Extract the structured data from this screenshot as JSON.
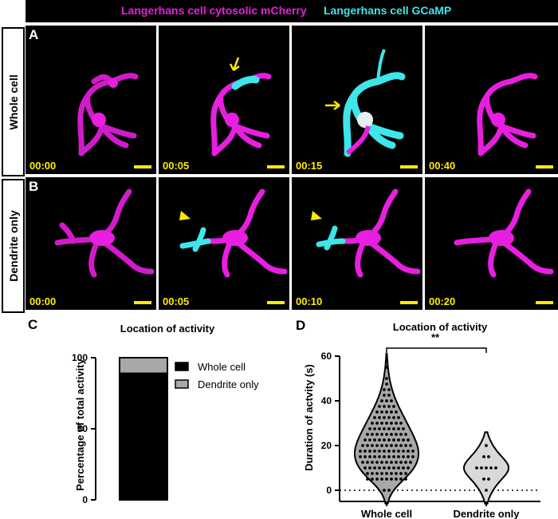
{
  "header": {
    "mcherry_label": "Langerhans cell cytosolic mCherry",
    "gcamp_label": "Langerhans cell GCaMP",
    "colors": {
      "mcherry": "#e81ee0",
      "gcamp": "#3ee6ea"
    }
  },
  "row_a": {
    "panel_letter": "A",
    "row_label": "Whole cell",
    "times": [
      "00:00",
      "00:05",
      "00:15",
      "00:40"
    ]
  },
  "row_b": {
    "panel_letter": "B",
    "row_label": "Dendrite only",
    "times": [
      "00:00",
      "00:05",
      "00:10",
      "00:20"
    ]
  },
  "panel_c": {
    "letter": "C",
    "title": "Location of activity",
    "ylabel": "Percentage of total activity",
    "yticks": [
      "0",
      "50",
      "100"
    ],
    "legend": [
      "Whole cell",
      "Dendrite only"
    ]
  },
  "panel_d": {
    "letter": "D",
    "title": "Location of activity",
    "significance": "**",
    "ylabel": "Duration of actvity  (s)",
    "yticks": [
      "0",
      "20",
      "40",
      "60"
    ],
    "categories": [
      "Whole cell",
      "Dendrite only"
    ]
  },
  "chart_data": [
    {
      "type": "bar",
      "stacked": true,
      "title": "Location of activity",
      "ylabel": "Percentage of total activity",
      "ylim": [
        0,
        100
      ],
      "categories": [
        ""
      ],
      "series": [
        {
          "name": "Whole cell",
          "values": [
            89
          ],
          "color": "#000000"
        },
        {
          "name": "Dendrite only",
          "values": [
            11
          ],
          "color": "#a8a8a8"
        }
      ],
      "legend_position": "right"
    },
    {
      "type": "scatter",
      "subtype": "violin",
      "title": "Location of activity",
      "ylabel": "Duration of actvity  (s)",
      "ylim": [
        -5,
        60
      ],
      "categories": [
        "Whole cell",
        "Dendrite only"
      ],
      "series": [
        {
          "name": "Whole cell",
          "color": "#a8a8a8",
          "values": [
            0,
            0,
            5,
            5,
            5,
            5,
            5,
            5,
            5,
            5,
            5,
            7.5,
            7.5,
            7.5,
            7.5,
            7.5,
            7.5,
            7.5,
            7.5,
            7.5,
            10,
            10,
            10,
            10,
            10,
            10,
            10,
            10,
            10,
            10,
            12.5,
            12.5,
            12.5,
            12.5,
            12.5,
            12.5,
            12.5,
            12.5,
            12.5,
            12.5,
            12.5,
            15,
            15,
            15,
            15,
            15,
            15,
            15,
            15,
            15,
            15,
            15,
            15,
            17.5,
            17.5,
            17.5,
            17.5,
            17.5,
            17.5,
            17.5,
            17.5,
            17.5,
            17.5,
            17.5,
            17.5,
            20,
            20,
            20,
            20,
            20,
            20,
            20,
            20,
            20,
            20,
            20,
            22.5,
            22.5,
            22.5,
            22.5,
            22.5,
            22.5,
            22.5,
            22.5,
            22.5,
            22.5,
            25,
            25,
            25,
            25,
            25,
            25,
            25,
            25,
            25,
            27.5,
            27.5,
            27.5,
            27.5,
            27.5,
            27.5,
            27.5,
            27.5,
            30,
            30,
            30,
            30,
            30,
            30,
            30,
            32.5,
            32.5,
            32.5,
            32.5,
            32.5,
            32.5,
            35,
            35,
            35,
            35,
            35,
            37.5,
            37.5,
            37.5,
            37.5,
            40,
            40,
            40,
            42.5,
            42.5,
            45,
            45,
            47.5,
            50,
            55
          ]
        },
        {
          "name": "Dendrite only",
          "color": "#d9d9d9",
          "values": [
            0,
            5,
            5,
            10,
            10,
            10,
            10,
            10,
            15,
            15,
            20
          ]
        }
      ],
      "reference_line": 0,
      "significance": "**"
    }
  ]
}
